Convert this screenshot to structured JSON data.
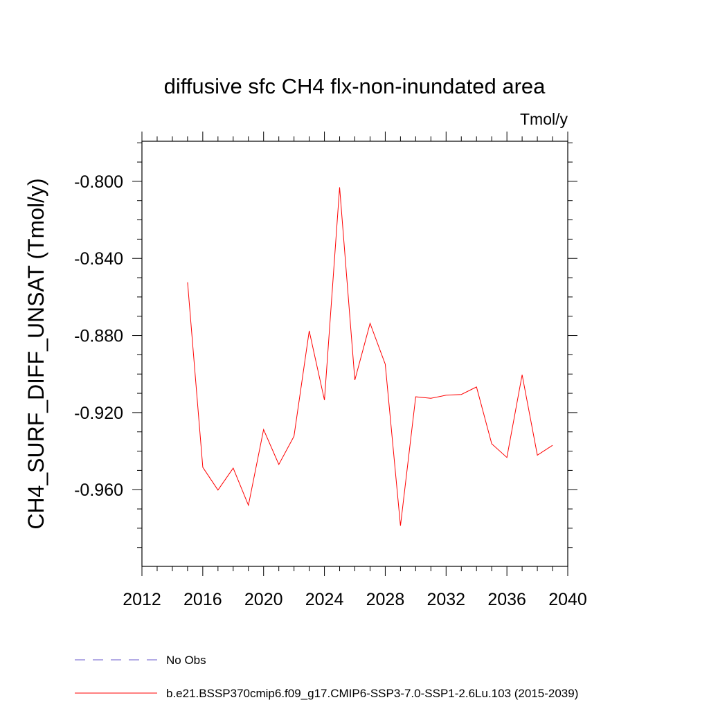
{
  "chart_data": {
    "type": "line",
    "title": "diffusive sfc CH4 flx-non-inundated area",
    "units_label": "Tmol/y",
    "xlabel": "",
    "ylabel": "CH4_SURF_DIFF_UNSAT  (Tmol/y)",
    "xlim": [
      2012,
      2040
    ],
    "ylim": [
      -0.9998,
      -0.7792
    ],
    "x_ticks": [
      2012,
      2016,
      2020,
      2024,
      2028,
      2032,
      2036,
      2040
    ],
    "x_tick_labels": [
      "2012",
      "2016",
      "2020",
      "2024",
      "2028",
      "2032",
      "2036",
      "2040"
    ],
    "y_ticks": [
      -0.96,
      -0.92,
      -0.88,
      -0.84,
      -0.8
    ],
    "y_tick_labels": [
      "-0.960",
      "-0.920",
      "-0.880",
      "-0.840",
      "-0.800"
    ],
    "grid": false,
    "legend_position": "bottom",
    "series": [
      {
        "name": "b.e21.BSSP370cmip6.f09_g17.CMIP6-SSP3-7.0-SSP1-2.6Lu.103 (2015-2039)",
        "color": "#ff0000",
        "x": [
          2015,
          2016,
          2017,
          2018,
          2019,
          2020,
          2021,
          2022,
          2023,
          2024,
          2025,
          2026,
          2027,
          2028,
          2029,
          2030,
          2031,
          2032,
          2033,
          2034,
          2035,
          2036,
          2037,
          2038,
          2039
        ],
        "y": [
          -0.8524,
          -0.9484,
          -0.9602,
          -0.9488,
          -0.9681,
          -0.9288,
          -0.9469,
          -0.9323,
          -0.8776,
          -0.9135,
          -0.8031,
          -0.9031,
          -0.8737,
          -0.8949,
          -0.9787,
          -0.9118,
          -0.9126,
          -0.911,
          -0.9106,
          -0.9067,
          -0.9362,
          -0.9433,
          -0.9004,
          -0.9421,
          -0.937
        ]
      }
    ],
    "legend": [
      {
        "label": "No Obs",
        "color": "#6a5acd",
        "dash": "dashed"
      },
      {
        "label": "b.e21.BSSP370cmip6.f09_g17.CMIP6-SSP3-7.0-SSP1-2.6Lu.103 (2015-2039)",
        "color": "#ff0000",
        "dash": "solid"
      }
    ]
  }
}
